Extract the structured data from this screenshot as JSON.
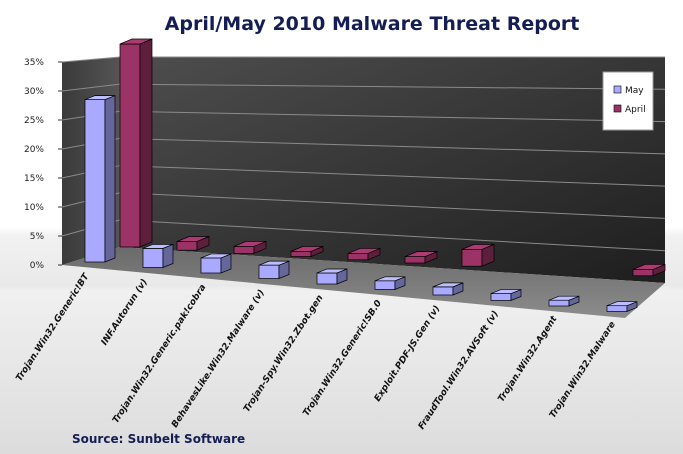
{
  "chart_data": {
    "type": "bar",
    "title": "April/May 2010 Malware Threat Report",
    "source": "Source: Sunbelt Software",
    "categories": [
      "Trojan.Win32.Generic!BT",
      "INF.Autorun (v)",
      "Trojan.Win32.Generic.pak!cobra",
      "BehavesLike.Win32.Malware (v)",
      "Trojan-Spy.Win32.Zbot.gen",
      "Trojan.Win32.Generic!SB.0",
      "Exploit.PDF-JS.Gen (v)",
      "FraudTool.Win32.AVSoft (v)",
      "Trojan.Win32.Agent",
      "Trojan.Win32.Malware"
    ],
    "series": [
      {
        "name": "May",
        "color": "#a9aaff",
        "values": [
          28.0,
          3.3,
          2.6,
          2.3,
          1.9,
          1.5,
          1.4,
          1.2,
          1.0,
          1.0
        ]
      },
      {
        "name": "April",
        "color": "#9c3366",
        "values": [
          35.0,
          1.5,
          1.2,
          0.9,
          1.1,
          1.1,
          2.9,
          0,
          0,
          1.1
        ]
      }
    ],
    "yticks": [
      "0%",
      "5%",
      "10%",
      "15%",
      "20%",
      "25%",
      "30%",
      "35%"
    ],
    "ylim": [
      0,
      35
    ],
    "grid": true,
    "legend_position": "top-right"
  }
}
